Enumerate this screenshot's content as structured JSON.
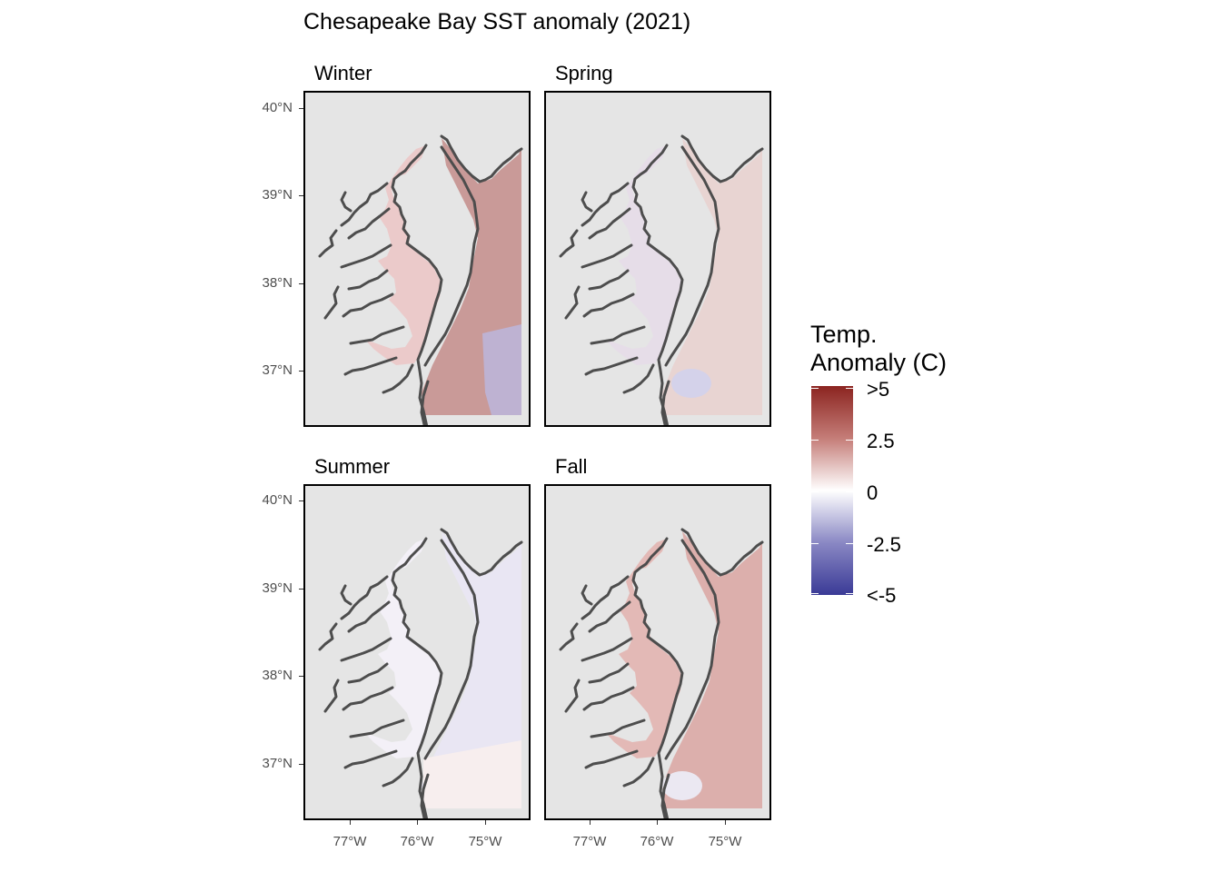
{
  "title": "Chesapeake Bay SST anomaly (2021)",
  "panels": [
    {
      "season": "Winter",
      "bay_color": "#ebcaca",
      "ocean_color": "#c99a98",
      "cold_patch": "#bcb5d8",
      "tint": "warm"
    },
    {
      "season": "Spring",
      "bay_color": "#e6dde8",
      "ocean_color": "#e8d4d2",
      "cold_patch": "#d4d2ea",
      "tint": "mixed"
    },
    {
      "season": "Summer",
      "bay_color": "#f3f0f7",
      "ocean_color": "#e9e6f3",
      "cold_patch": "#f7eeee",
      "tint": "neutral"
    },
    {
      "season": "Fall",
      "bay_color": "#e3b9b6",
      "ocean_color": "#dcafac",
      "cold_patch": "#ebe8f2",
      "tint": "warm"
    }
  ],
  "y_axis": {
    "labels": [
      "40°N",
      "39°N",
      "38°N",
      "37°N"
    ]
  },
  "x_axis": {
    "labels": [
      "77°W",
      "76°W",
      "75°W"
    ]
  },
  "legend": {
    "title_line1": "Temp.",
    "title_line2": "Anomaly (C)",
    "labels": [
      ">5",
      "2.5",
      "0",
      "-2.5",
      "<-5"
    ]
  }
}
